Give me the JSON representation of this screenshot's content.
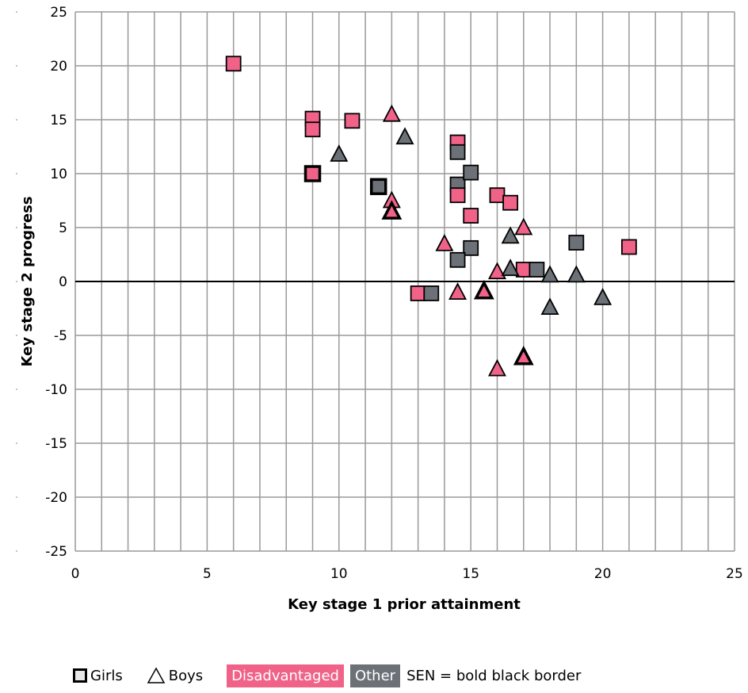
{
  "chart_data": {
    "type": "scatter",
    "xlabel": "Key stage 1 prior attainment",
    "ylabel": "Key stage 2 progress",
    "xlim": [
      0,
      25
    ],
    "ylim": [
      -25,
      25
    ],
    "xticks": [
      "0",
      "5",
      "10",
      "15",
      "20",
      "25"
    ],
    "yticks": [
      "25",
      "20",
      "15",
      "10",
      "5",
      "0",
      "-5",
      "-10",
      "-15",
      "-20",
      "-25"
    ],
    "grid": true,
    "colors": {
      "disadvantaged": "#f06288",
      "other": "#6b7177",
      "grid": "#999999"
    },
    "points": [
      {
        "x": 6,
        "y": 20.2,
        "shape": "square",
        "group": "disadvantaged",
        "sen": false
      },
      {
        "x": 9,
        "y": 15.1,
        "shape": "square",
        "group": "disadvantaged",
        "sen": false
      },
      {
        "x": 9,
        "y": 14.1,
        "shape": "square",
        "group": "disadvantaged",
        "sen": false
      },
      {
        "x": 9,
        "y": 10.0,
        "shape": "square",
        "group": "disadvantaged",
        "sen": true
      },
      {
        "x": 10.5,
        "y": 14.9,
        "shape": "square",
        "group": "disadvantaged",
        "sen": false
      },
      {
        "x": 11.5,
        "y": 8.8,
        "shape": "square",
        "group": "other",
        "sen": true
      },
      {
        "x": 14.5,
        "y": 12.9,
        "shape": "square",
        "group": "disadvantaged",
        "sen": false
      },
      {
        "x": 14.5,
        "y": 12.0,
        "shape": "square",
        "group": "other",
        "sen": false
      },
      {
        "x": 14.5,
        "y": 9.0,
        "shape": "square",
        "group": "other",
        "sen": false
      },
      {
        "x": 14.5,
        "y": 8.0,
        "shape": "square",
        "group": "disadvantaged",
        "sen": false
      },
      {
        "x": 15,
        "y": 10.1,
        "shape": "square",
        "group": "other",
        "sen": false
      },
      {
        "x": 15,
        "y": 6.1,
        "shape": "square",
        "group": "disadvantaged",
        "sen": false
      },
      {
        "x": 15,
        "y": 3.1,
        "shape": "square",
        "group": "other",
        "sen": false
      },
      {
        "x": 14.5,
        "y": 2.0,
        "shape": "square",
        "group": "other",
        "sen": false
      },
      {
        "x": 16,
        "y": 8.0,
        "shape": "square",
        "group": "disadvantaged",
        "sen": false
      },
      {
        "x": 16.5,
        "y": 7.3,
        "shape": "square",
        "group": "disadvantaged",
        "sen": false
      },
      {
        "x": 13,
        "y": -1.1,
        "shape": "square",
        "group": "disadvantaged",
        "sen": false
      },
      {
        "x": 13.5,
        "y": -1.1,
        "shape": "square",
        "group": "other",
        "sen": false
      },
      {
        "x": 17,
        "y": 1.1,
        "shape": "square",
        "group": "disadvantaged",
        "sen": false
      },
      {
        "x": 17.5,
        "y": 1.1,
        "shape": "square",
        "group": "other",
        "sen": false
      },
      {
        "x": 19,
        "y": 3.6,
        "shape": "square",
        "group": "other",
        "sen": false
      },
      {
        "x": 21,
        "y": 3.2,
        "shape": "square",
        "group": "disadvantaged",
        "sen": false
      },
      {
        "x": 12,
        "y": 15.5,
        "shape": "triangle",
        "group": "disadvantaged",
        "sen": false
      },
      {
        "x": 12.5,
        "y": 13.4,
        "shape": "triangle",
        "group": "other",
        "sen": false
      },
      {
        "x": 10,
        "y": 11.8,
        "shape": "triangle",
        "group": "other",
        "sen": false
      },
      {
        "x": 12,
        "y": 7.5,
        "shape": "triangle",
        "group": "disadvantaged",
        "sen": false
      },
      {
        "x": 12,
        "y": 6.5,
        "shape": "triangle",
        "group": "disadvantaged",
        "sen": true
      },
      {
        "x": 14,
        "y": 3.5,
        "shape": "triangle",
        "group": "disadvantaged",
        "sen": false
      },
      {
        "x": 14.5,
        "y": -1.0,
        "shape": "triangle",
        "group": "disadvantaged",
        "sen": false
      },
      {
        "x": 15.5,
        "y": -0.9,
        "shape": "triangle",
        "group": "disadvantaged",
        "sen": true
      },
      {
        "x": 16,
        "y": 0.9,
        "shape": "triangle",
        "group": "disadvantaged",
        "sen": false
      },
      {
        "x": 16.5,
        "y": 4.2,
        "shape": "triangle",
        "group": "other",
        "sen": false
      },
      {
        "x": 16.5,
        "y": 1.2,
        "shape": "triangle",
        "group": "other",
        "sen": false
      },
      {
        "x": 17,
        "y": 5.0,
        "shape": "triangle",
        "group": "disadvantaged",
        "sen": false
      },
      {
        "x": 18,
        "y": 0.6,
        "shape": "triangle",
        "group": "other",
        "sen": false
      },
      {
        "x": 18,
        "y": -2.4,
        "shape": "triangle",
        "group": "other",
        "sen": false
      },
      {
        "x": 19,
        "y": 0.6,
        "shape": "triangle",
        "group": "other",
        "sen": false
      },
      {
        "x": 20,
        "y": -1.5,
        "shape": "triangle",
        "group": "other",
        "sen": false
      },
      {
        "x": 16,
        "y": -8.1,
        "shape": "triangle",
        "group": "disadvantaged",
        "sen": false
      },
      {
        "x": 17,
        "y": -7.0,
        "shape": "triangle",
        "group": "disadvantaged",
        "sen": true
      }
    ]
  },
  "legend": {
    "girls": "Girls",
    "boys": "Boys",
    "disadvantaged": "Disadvantaged",
    "other": "Other",
    "sen_note": "SEN = bold black border"
  }
}
